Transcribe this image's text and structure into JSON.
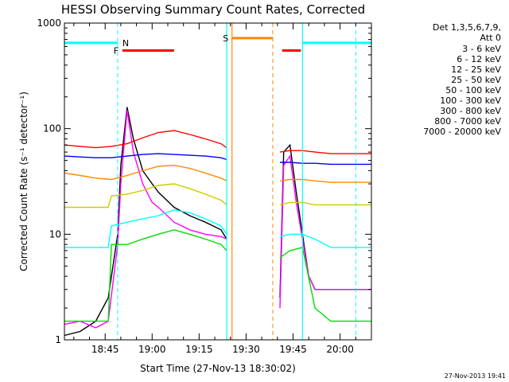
{
  "chart_data": {
    "type": "line",
    "title": "HESSI Observing Summary Count Rates, Corrected",
    "xlabel": "Start Time (27-Nov-13 18:30:02)",
    "ylabel": "Corrected Count Rate (s⁻¹ detector⁻¹)",
    "y_scale": "log",
    "ylim": [
      1,
      1000
    ],
    "xlim_minutes_from_start": [
      0,
      98
    ],
    "x_tick_labels": [
      "18:45",
      "19:00",
      "19:15",
      "19:30",
      "19:45",
      "20:00"
    ],
    "x_tick_minutes": [
      13,
      28,
      43,
      58,
      73,
      88
    ],
    "y_tick_labels": [
      "1",
      "10",
      "100",
      "1000"
    ],
    "y_tick_values": [
      1,
      10,
      100,
      1000
    ],
    "legend_header": [
      "Det 1,3,5,6,7,9,",
      "Att 0"
    ],
    "legend_position": "right",
    "gaps_minutes": [
      [
        51.8,
        68.8
      ]
    ],
    "series": [
      {
        "name": "3 - 6 keV",
        "color": "#000000",
        "x": [
          0,
          5,
          10,
          14,
          17,
          18,
          20,
          22,
          25,
          28,
          30,
          35,
          40,
          45,
          50,
          51.8,
          68.8,
          70,
          72,
          74,
          76,
          78,
          80,
          85,
          90,
          95,
          98
        ],
        "y": [
          1.1,
          1.2,
          1.5,
          2.5,
          10,
          45,
          160,
          80,
          40,
          30,
          25,
          18,
          15,
          13,
          11,
          9,
          2.5,
          60,
          70,
          25,
          10,
          4,
          3,
          3,
          3,
          3,
          3
        ]
      },
      {
        "name": "6 - 12 keV",
        "color": "#ff00ff",
        "x": [
          0,
          5,
          10,
          14,
          17,
          18,
          20,
          22,
          25,
          28,
          30,
          35,
          40,
          45,
          50,
          51.8,
          68.8,
          70,
          72,
          74,
          76,
          78,
          80,
          85,
          90,
          95,
          98
        ],
        "y": [
          1.4,
          1.5,
          1.3,
          1.5,
          8,
          30,
          150,
          60,
          30,
          20,
          18,
          13,
          11,
          10,
          9.5,
          9,
          2,
          45,
          55,
          20,
          9,
          4,
          3,
          3,
          3,
          3,
          3
        ]
      },
      {
        "name": "12 - 25 keV",
        "color": "#00dd00",
        "x": [
          0,
          5,
          10,
          14,
          15,
          20,
          25,
          30,
          35,
          40,
          45,
          50,
          51.8,
          68.8,
          72,
          76,
          80,
          85,
          90,
          95,
          98
        ],
        "y": [
          1.5,
          1.5,
          1.5,
          1.5,
          8,
          8,
          9,
          10,
          11,
          10,
          9,
          8,
          7,
          6,
          7,
          7.5,
          2,
          1.5,
          1.5,
          1.5,
          1.5
        ]
      },
      {
        "name": "25 - 50 keV",
        "color": "#00ffff",
        "x": [
          0,
          5,
          10,
          14,
          15,
          20,
          25,
          30,
          35,
          40,
          45,
          50,
          51.8,
          68.8,
          72,
          76,
          80,
          85,
          90,
          95,
          98
        ],
        "y": [
          7.5,
          7.5,
          7.5,
          7.5,
          12,
          13,
          14,
          15,
          17,
          16,
          14,
          12,
          10,
          9.5,
          10,
          10,
          9,
          7.5,
          7.5,
          7.5,
          7.5
        ]
      },
      {
        "name": "50 - 100 keV",
        "color": "#cccc00",
        "x": [
          0,
          5,
          10,
          14,
          15,
          20,
          25,
          30,
          35,
          40,
          45,
          50,
          51.8,
          68.8,
          72,
          76,
          80,
          85,
          90,
          95,
          98
        ],
        "y": [
          18,
          18,
          18,
          18,
          23,
          24,
          26,
          29,
          30,
          27,
          24,
          21,
          19,
          19,
          20,
          20,
          19,
          19,
          19,
          19,
          19
        ]
      },
      {
        "name": "100 - 300 keV",
        "color": "#ff8800",
        "x": [
          0,
          5,
          10,
          15,
          20,
          25,
          30,
          35,
          40,
          45,
          50,
          51.8,
          68.8,
          72,
          76,
          80,
          85,
          90,
          95,
          98
        ],
        "y": [
          38,
          36,
          34,
          33,
          36,
          40,
          44,
          45,
          42,
          38,
          34,
          32,
          32,
          33,
          33,
          32,
          31,
          31,
          31,
          31
        ]
      },
      {
        "name": "300 - 800 keV",
        "color": "#0000ff",
        "x": [
          0,
          5,
          10,
          15,
          20,
          25,
          30,
          35,
          40,
          45,
          50,
          51.8,
          68.8,
          72,
          76,
          80,
          85,
          90,
          95,
          98
        ],
        "y": [
          55,
          54,
          53,
          53,
          55,
          57,
          58,
          57,
          56,
          55,
          53,
          51,
          48,
          48,
          47,
          47,
          46,
          46,
          46,
          46
        ]
      },
      {
        "name": "800 - 7000 keV",
        "color": "#ff0000",
        "x": [
          0,
          5,
          10,
          15,
          20,
          25,
          30,
          35,
          40,
          45,
          50,
          51.8,
          68.8,
          72,
          76,
          80,
          85,
          90,
          95,
          98
        ],
        "y": [
          70,
          68,
          66,
          68,
          72,
          82,
          92,
          96,
          88,
          80,
          72,
          66,
          60,
          62,
          62,
          60,
          58,
          58,
          58,
          58
        ]
      },
      {
        "name": "7000 - 20000 keV",
        "color": "#888800",
        "x": [
          0,
          98
        ],
        "y": [
          1,
          1
        ]
      }
    ],
    "annotations": [
      {
        "label": "N",
        "color": "#00ffff",
        "kind": "night",
        "bars_minutes": [
          [
            0,
            17
          ],
          [
            76,
            98
          ]
        ],
        "level": 650
      },
      {
        "label": "F",
        "color": "#ff0000",
        "kind": "flare",
        "bars_minutes": [
          [
            18.5,
            35
          ],
          [
            69.5,
            75.5
          ]
        ],
        "level": 550
      },
      {
        "label": "S",
        "color": "#ff8800",
        "kind": "saa",
        "bars_minutes": [
          [
            53.5,
            66.5
          ]
        ],
        "level": 720
      }
    ],
    "dashed_markers_minutes": [
      {
        "color": "#00ffff",
        "x": [
          17,
          93
        ]
      },
      {
        "color": "#ff8800",
        "x": [
          66.5
        ]
      }
    ],
    "solid_markers_minutes": [
      {
        "color": "#00ffff",
        "x": [
          51.8,
          76
        ]
      },
      {
        "color": "#ff8800",
        "x": [
          53.5
        ]
      }
    ]
  },
  "footer_stamp": "27-Nov-2013 19:41"
}
